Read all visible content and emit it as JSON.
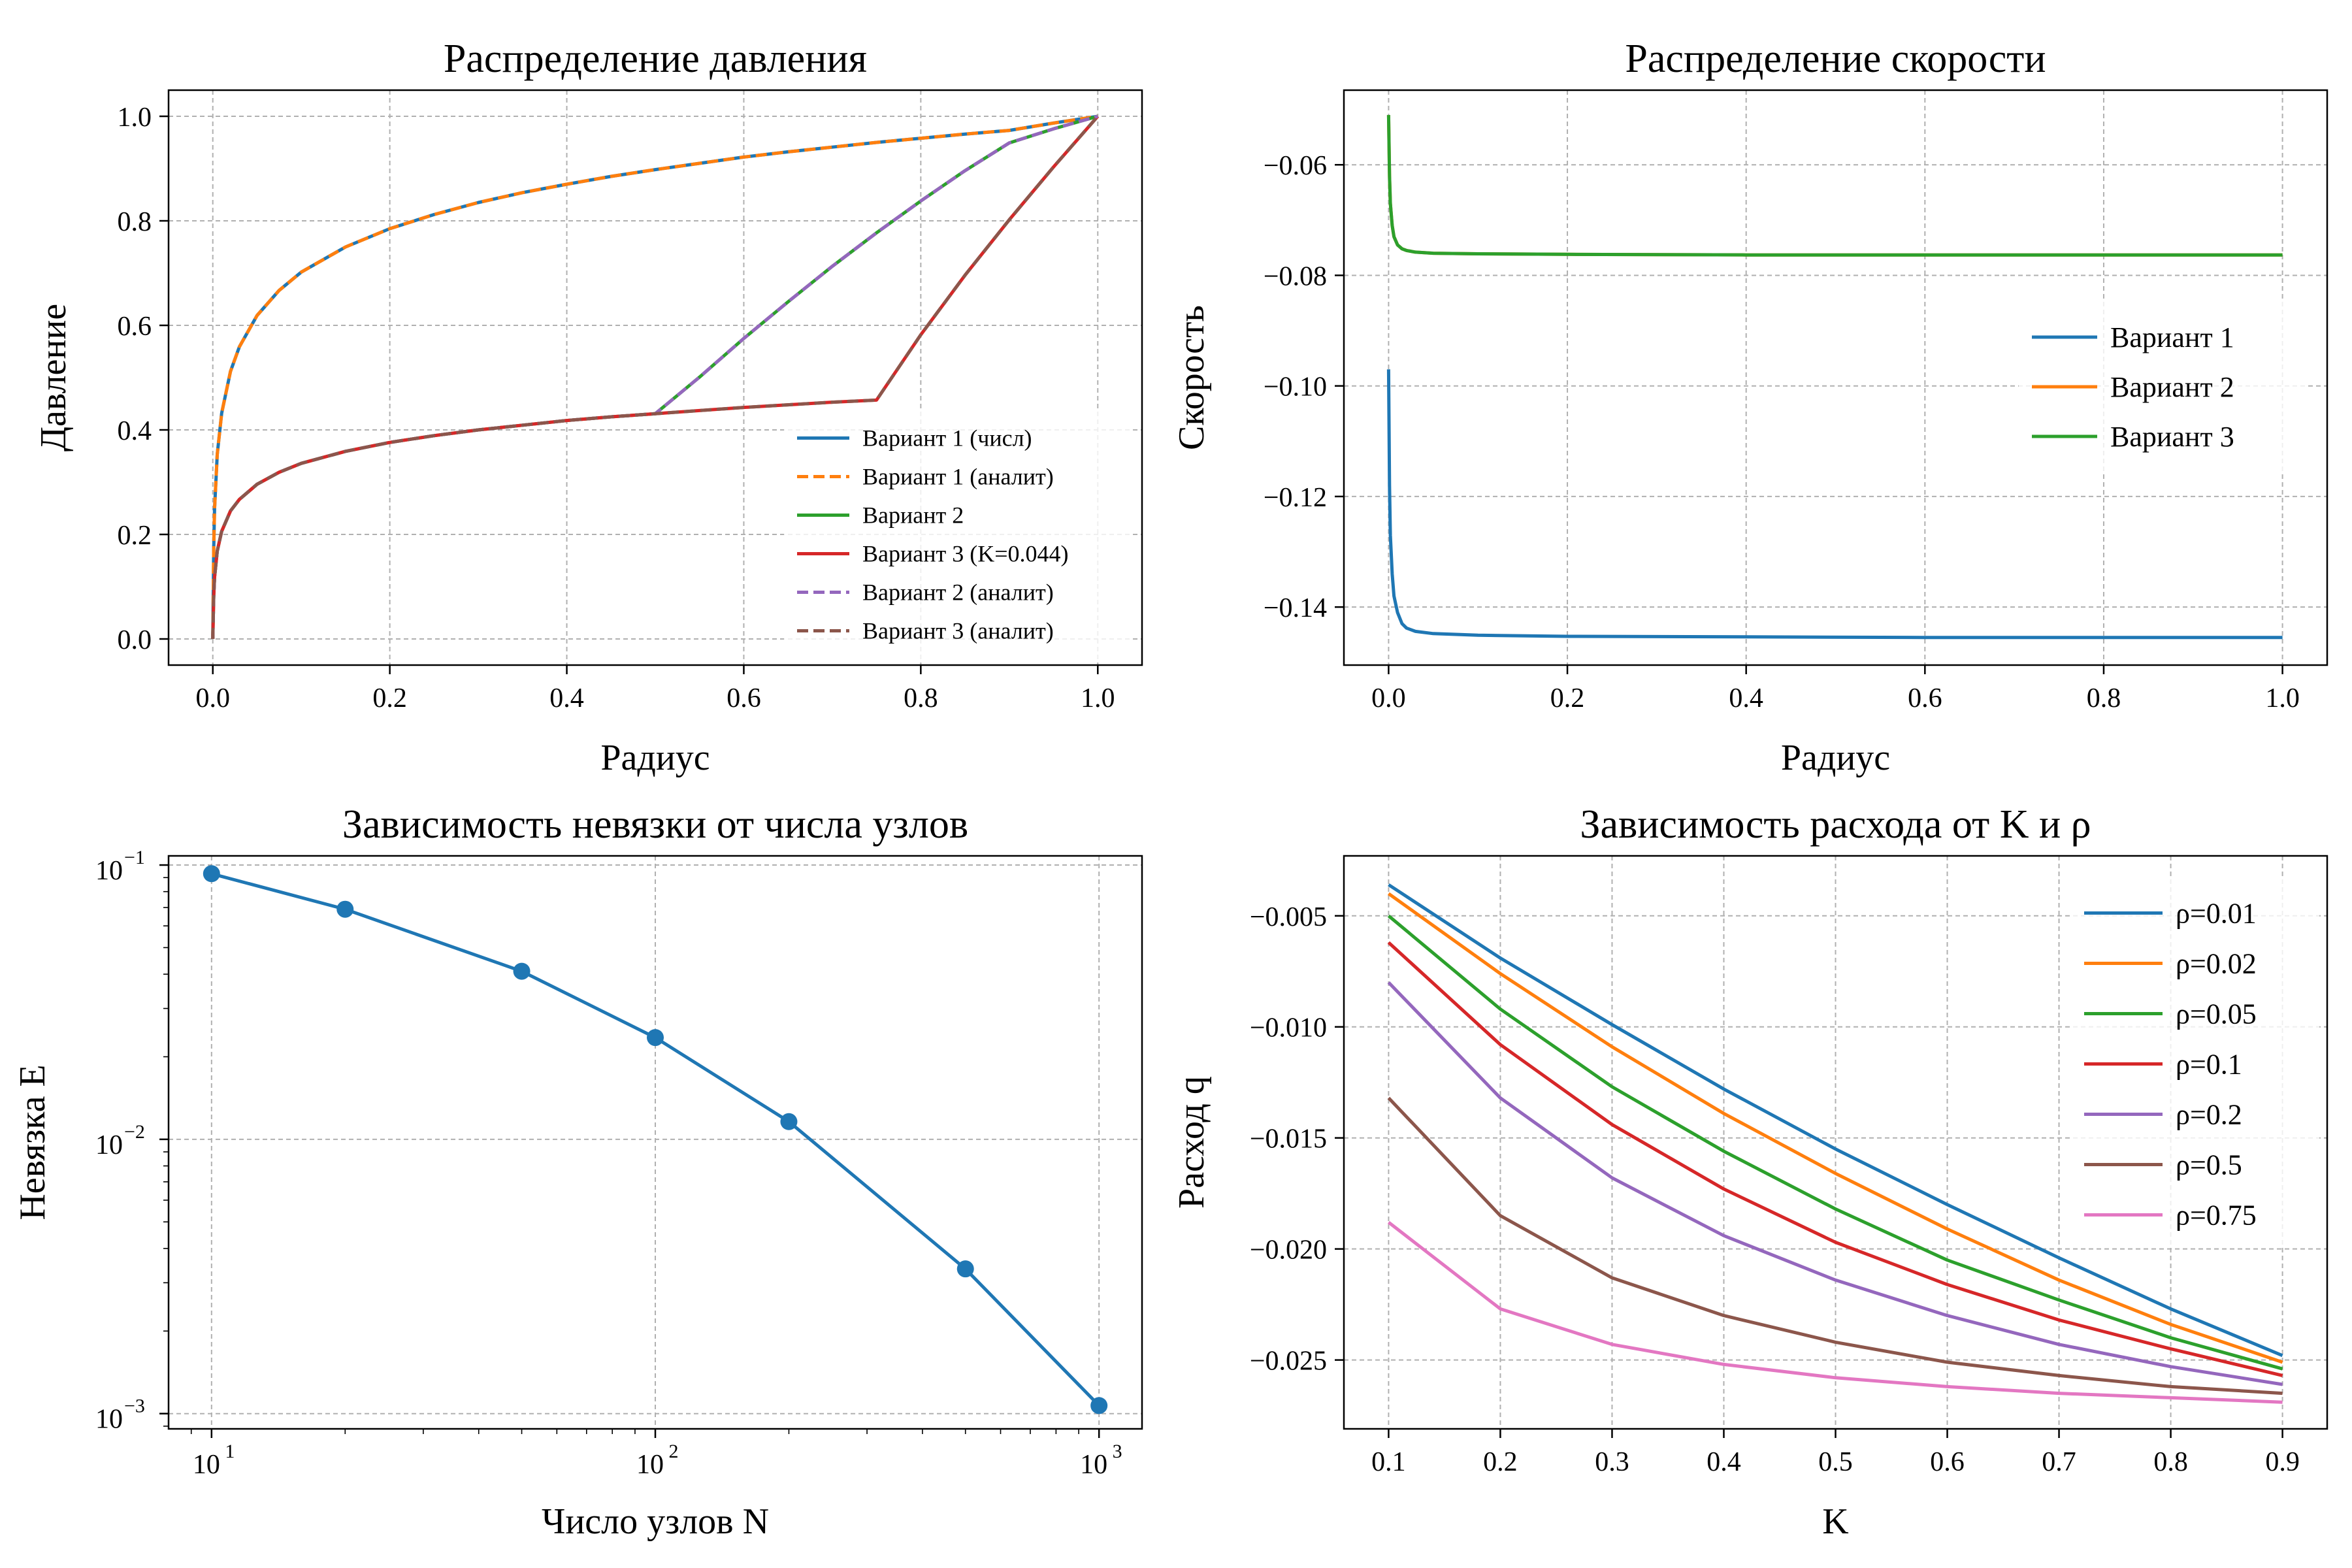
{
  "colors": {
    "blue": "#1f77b4",
    "orange": "#ff7f0e",
    "green": "#2ca02c",
    "red": "#d62728",
    "purple": "#9467bd",
    "brown": "#8c564b",
    "pink": "#e377c2"
  },
  "chart_data": [
    {
      "id": "pressure",
      "type": "line",
      "title": "Распределение давления",
      "xlabel": "Радиус",
      "ylabel": "Давление",
      "xlim": [
        -0.05,
        1.05
      ],
      "ylim": [
        -0.05,
        1.05
      ],
      "xticks": [
        0.0,
        0.2,
        0.4,
        0.6,
        0.8,
        1.0
      ],
      "xtick_labels": [
        "0.0",
        "0.2",
        "0.4",
        "0.6",
        "0.8",
        "1.0"
      ],
      "yticks": [
        0.0,
        0.2,
        0.4,
        0.6,
        0.8,
        1.0
      ],
      "ytick_labels": [
        "0.0",
        "0.2",
        "0.4",
        "0.6",
        "0.8",
        "1.0"
      ],
      "grid": true,
      "legend": "lower-right",
      "x": [
        0.0,
        0.001,
        0.002,
        0.005,
        0.01,
        0.02,
        0.03,
        0.05,
        0.075,
        0.1,
        0.15,
        0.2,
        0.25,
        0.3,
        0.35,
        0.4,
        0.45,
        0.5,
        0.55,
        0.6,
        0.65,
        0.7,
        0.75,
        0.8,
        0.85,
        0.9,
        0.95,
        1.0
      ],
      "series": [
        {
          "name": "Вариант 1 (числ)",
          "color": "blue",
          "dash": false,
          "y": [
            0.0,
            0.171,
            0.249,
            0.353,
            0.432,
            0.512,
            0.559,
            0.619,
            0.667,
            0.702,
            0.75,
            0.785,
            0.812,
            0.835,
            0.854,
            0.87,
            0.885,
            0.898,
            0.91,
            0.922,
            0.932,
            0.941,
            0.95,
            0.958,
            0.966,
            0.973,
            0.987,
            1.0
          ]
        },
        {
          "name": "Вариант 1 (аналит)",
          "color": "orange",
          "dash": true,
          "y": [
            0.0,
            0.171,
            0.249,
            0.353,
            0.432,
            0.512,
            0.559,
            0.619,
            0.667,
            0.702,
            0.75,
            0.785,
            0.812,
            0.835,
            0.854,
            0.87,
            0.885,
            0.898,
            0.91,
            0.922,
            0.932,
            0.941,
            0.95,
            0.958,
            0.966,
            0.973,
            0.987,
            1.0
          ]
        },
        {
          "name": "Вариант 2",
          "color": "green",
          "dash": false,
          "y": [
            0.0,
            0.081,
            0.118,
            0.168,
            0.206,
            0.245,
            0.267,
            0.296,
            0.319,
            0.336,
            0.359,
            0.376,
            0.389,
            0.4,
            0.409,
            0.418,
            0.425,
            0.431,
            0.501,
            0.575,
            0.645,
            0.713,
            0.777,
            0.838,
            0.896,
            0.949,
            0.976,
            1.0
          ]
        },
        {
          "name": "Вариант 3 (K=0.044)",
          "color": "red",
          "dash": false,
          "y": [
            0.0,
            0.081,
            0.118,
            0.168,
            0.206,
            0.245,
            0.267,
            0.296,
            0.319,
            0.336,
            0.359,
            0.376,
            0.389,
            0.4,
            0.409,
            0.418,
            0.425,
            0.431,
            0.437,
            0.443,
            0.448,
            0.453,
            0.457,
            0.582,
            0.696,
            0.802,
            0.903,
            1.0
          ]
        },
        {
          "name": "Вариант 2 (аналит)",
          "color": "purple",
          "dash": true,
          "y": [
            0.0,
            0.081,
            0.118,
            0.168,
            0.206,
            0.245,
            0.267,
            0.296,
            0.319,
            0.336,
            0.359,
            0.376,
            0.389,
            0.4,
            0.409,
            0.418,
            0.425,
            0.431,
            0.501,
            0.575,
            0.645,
            0.713,
            0.777,
            0.838,
            0.896,
            0.949,
            0.976,
            1.0
          ]
        },
        {
          "name": "Вариант 3 (аналит)",
          "color": "brown",
          "dash": true,
          "y": [
            0.0,
            0.081,
            0.118,
            0.168,
            0.206,
            0.245,
            0.267,
            0.296,
            0.319,
            0.336,
            0.359,
            0.376,
            0.389,
            0.4,
            0.409,
            0.418,
            0.425,
            0.431,
            0.437,
            0.443,
            0.448,
            0.453,
            0.457,
            0.582,
            0.696,
            0.802,
            0.903,
            1.0
          ]
        }
      ]
    },
    {
      "id": "velocity",
      "type": "line",
      "title": "Распределение скорости",
      "xlabel": "Радиус",
      "ylabel": "Скорость",
      "xlim": [
        -0.05,
        1.05
      ],
      "ylim": [
        -0.1505,
        -0.0465
      ],
      "xticks": [
        0.0,
        0.2,
        0.4,
        0.6,
        0.8,
        1.0
      ],
      "xtick_labels": [
        "0.0",
        "0.2",
        "0.4",
        "0.6",
        "0.8",
        "1.0"
      ],
      "yticks": [
        -0.14,
        -0.12,
        -0.1,
        -0.08,
        -0.06
      ],
      "ytick_labels": [
        "−0.14",
        "−0.12",
        "−0.10",
        "−0.08",
        "−0.06"
      ],
      "grid": true,
      "legend": "center-right",
      "x": [
        0.0,
        0.001,
        0.002,
        0.004,
        0.006,
        0.01,
        0.015,
        0.02,
        0.03,
        0.05,
        0.1,
        0.2,
        0.4,
        0.6,
        0.8,
        1.0
      ],
      "series": [
        {
          "name": "Вариант 1",
          "color": "blue",
          "y": [
            -0.097,
            -0.118,
            -0.127,
            -0.134,
            -0.138,
            -0.141,
            -0.143,
            -0.1438,
            -0.1444,
            -0.1448,
            -0.1451,
            -0.1453,
            -0.1454,
            -0.1455,
            -0.1455,
            -0.1455
          ]
        },
        {
          "name": "Вариант 2",
          "color": "orange",
          "y": [
            -0.051,
            -0.062,
            -0.067,
            -0.071,
            -0.073,
            -0.0745,
            -0.0752,
            -0.0755,
            -0.0758,
            -0.076,
            -0.0761,
            -0.0762,
            -0.0763,
            -0.0763,
            -0.0763,
            -0.0763
          ]
        },
        {
          "name": "Вариант 3",
          "color": "green",
          "y": [
            -0.051,
            -0.062,
            -0.067,
            -0.071,
            -0.073,
            -0.0745,
            -0.0752,
            -0.0755,
            -0.0758,
            -0.076,
            -0.0761,
            -0.0762,
            -0.0763,
            -0.0763,
            -0.0763,
            -0.0763
          ]
        }
      ]
    },
    {
      "id": "residual",
      "type": "line",
      "title": "Зависимость невязки от числа узлов",
      "xlabel": "Число узлов N",
      "ylabel": "Невязка E",
      "xscale": "log",
      "yscale": "log",
      "xlim": [
        8,
        1250
      ],
      "ylim": [
        0.00088,
        0.108
      ],
      "xticks": [
        10,
        100,
        1000
      ],
      "xtick_bases": [
        "10",
        "10",
        "10"
      ],
      "xtick_exps": [
        "1",
        "2",
        "3"
      ],
      "yticks": [
        0.001,
        0.01,
        0.1
      ],
      "ytick_bases": [
        "10",
        "10",
        "10"
      ],
      "ytick_exps": [
        "−3",
        "−2",
        "−1"
      ],
      "grid": true,
      "markers": true,
      "series": [
        {
          "color": "blue",
          "x": [
            10,
            20,
            50,
            100,
            200,
            500,
            1000
          ],
          "y": [
            0.093,
            0.069,
            0.041,
            0.0235,
            0.0116,
            0.00337,
            0.00107
          ]
        }
      ]
    },
    {
      "id": "flow",
      "type": "line",
      "title": "Зависимость расхода от K и ρ",
      "xlabel": "K",
      "ylabel": "Расход q",
      "xlim": [
        0.06,
        0.94
      ],
      "ylim": [
        -0.0281,
        -0.0023
      ],
      "xticks": [
        0.1,
        0.2,
        0.3,
        0.4,
        0.5,
        0.6,
        0.7,
        0.8,
        0.9
      ],
      "xtick_labels": [
        "0.1",
        "0.2",
        "0.3",
        "0.4",
        "0.5",
        "0.6",
        "0.7",
        "0.8",
        "0.9"
      ],
      "yticks": [
        -0.025,
        -0.02,
        -0.015,
        -0.01,
        -0.005
      ],
      "ytick_labels": [
        "−0.025",
        "−0.020",
        "−0.015",
        "−0.010",
        "−0.005"
      ],
      "grid": true,
      "legend": "upper-right",
      "x": [
        0.1,
        0.2,
        0.3,
        0.4,
        0.5,
        0.6,
        0.7,
        0.8,
        0.9
      ],
      "series": [
        {
          "name": "ρ=0.01",
          "color": "blue",
          "y": [
            -0.0036,
            -0.0069,
            -0.0099,
            -0.0128,
            -0.0155,
            -0.018,
            -0.0204,
            -0.0227,
            -0.0248
          ]
        },
        {
          "name": "ρ=0.02",
          "color": "orange",
          "y": [
            -0.004,
            -0.0076,
            -0.0109,
            -0.0139,
            -0.0166,
            -0.0191,
            -0.0214,
            -0.0234,
            -0.0251
          ]
        },
        {
          "name": "ρ=0.05",
          "color": "green",
          "y": [
            -0.005,
            -0.0092,
            -0.0127,
            -0.0156,
            -0.0182,
            -0.0205,
            -0.0223,
            -0.024,
            -0.0254
          ]
        },
        {
          "name": "ρ=0.1",
          "color": "red",
          "y": [
            -0.0062,
            -0.0108,
            -0.0144,
            -0.0173,
            -0.0197,
            -0.0216,
            -0.0232,
            -0.0245,
            -0.0257
          ]
        },
        {
          "name": "ρ=0.2",
          "color": "purple",
          "y": [
            -0.008,
            -0.0132,
            -0.0168,
            -0.0194,
            -0.0214,
            -0.023,
            -0.0243,
            -0.0253,
            -0.0261
          ]
        },
        {
          "name": "ρ=0.5",
          "color": "brown",
          "y": [
            -0.0132,
            -0.0185,
            -0.0213,
            -0.023,
            -0.0242,
            -0.0251,
            -0.0257,
            -0.0262,
            -0.0265
          ]
        },
        {
          "name": "ρ=0.75",
          "color": "pink",
          "y": [
            -0.0188,
            -0.0227,
            -0.0243,
            -0.0252,
            -0.0258,
            -0.0262,
            -0.0265,
            -0.0267,
            -0.0269
          ]
        }
      ]
    }
  ]
}
